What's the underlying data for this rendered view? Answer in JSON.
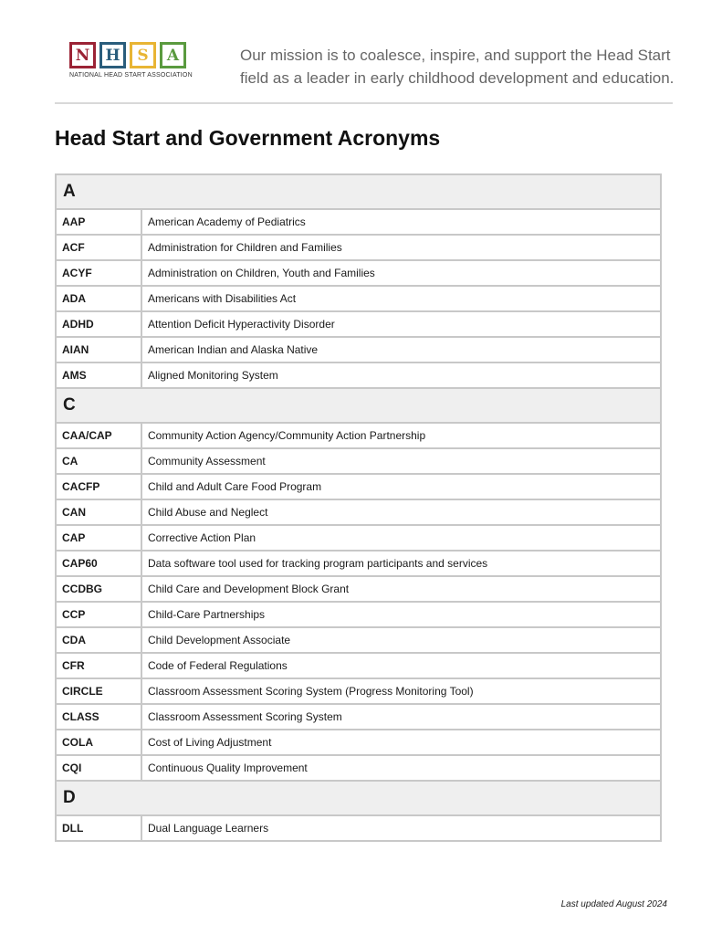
{
  "header": {
    "logo_letters": [
      "N",
      "H",
      "S",
      "A"
    ],
    "logo_colors": [
      "#9b2335",
      "#2a5d7c",
      "#e8b534",
      "#5a9a3f"
    ],
    "logo_subtitle": "NATIONAL HEAD START ASSOCIATION",
    "mission_line1": "Our mission is to coalesce, inspire, and support the Head Start",
    "mission_line2": "field as a leader in early childhood development and education."
  },
  "title": "Head Start and Government Acronyms",
  "sections": [
    {
      "letter": "A",
      "rows": [
        [
          "AAP",
          "American Academy of Pediatrics"
        ],
        [
          "ACF",
          "Administration for Children and Families"
        ],
        [
          "ACYF",
          "Administration on Children, Youth and Families"
        ],
        [
          "ADA",
          "Americans with Disabilities Act"
        ],
        [
          "ADHD",
          "Attention Deficit Hyperactivity Disorder"
        ],
        [
          "AIAN",
          "American Indian and Alaska Native"
        ],
        [
          "AMS",
          "Aligned Monitoring System"
        ]
      ]
    },
    {
      "letter": "C",
      "rows": [
        [
          "CAA/CAP",
          "Community Action Agency/Community Action Partnership"
        ],
        [
          "CA",
          "Community Assessment"
        ],
        [
          "CACFP",
          "Child and Adult Care Food Program"
        ],
        [
          "CAN",
          "Child Abuse and Neglect"
        ],
        [
          "CAP",
          "Corrective Action Plan"
        ],
        [
          "CAP60",
          "Data software tool used for tracking program participants and services"
        ],
        [
          "CCDBG",
          "Child Care and Development Block Grant"
        ],
        [
          "CCP",
          "Child-Care Partnerships"
        ],
        [
          "CDA",
          "Child Development Associate"
        ],
        [
          "CFR",
          "Code of Federal Regulations"
        ],
        [
          "CIRCLE",
          "Classroom Assessment Scoring System (Progress Monitoring Tool)"
        ],
        [
          "CLASS",
          "Classroom Assessment Scoring System"
        ],
        [
          "COLA",
          "Cost of Living Adjustment"
        ],
        [
          "CQI",
          "Continuous Quality Improvement"
        ]
      ]
    },
    {
      "letter": "D",
      "rows": [
        [
          "DLL",
          "Dual Language Learners"
        ]
      ]
    }
  ],
  "footer": "Last updated August 2024"
}
